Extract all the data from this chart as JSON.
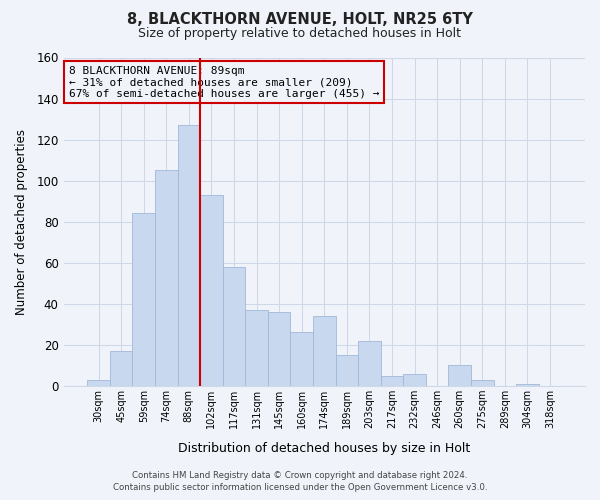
{
  "title": "8, BLACKTHORN AVENUE, HOLT, NR25 6TY",
  "subtitle": "Size of property relative to detached houses in Holt",
  "xlabel": "Distribution of detached houses by size in Holt",
  "ylabel": "Number of detached properties",
  "bar_labels": [
    "30sqm",
    "45sqm",
    "59sqm",
    "74sqm",
    "88sqm",
    "102sqm",
    "117sqm",
    "131sqm",
    "145sqm",
    "160sqm",
    "174sqm",
    "189sqm",
    "203sqm",
    "217sqm",
    "232sqm",
    "246sqm",
    "260sqm",
    "275sqm",
    "289sqm",
    "304sqm",
    "318sqm"
  ],
  "bar_values": [
    3,
    17,
    84,
    105,
    127,
    93,
    58,
    37,
    36,
    26,
    34,
    15,
    22,
    5,
    6,
    0,
    10,
    3,
    0,
    1,
    0
  ],
  "bar_color": "#c8d8ee",
  "bar_edge_color": "#a0b8d8",
  "vline_color": "#cc0000",
  "ylim": [
    0,
    160
  ],
  "yticks": [
    0,
    20,
    40,
    60,
    80,
    100,
    120,
    140,
    160
  ],
  "annotation_title": "8 BLACKTHORN AVENUE: 89sqm",
  "annotation_line1": "← 31% of detached houses are smaller (209)",
  "annotation_line2": "67% of semi-detached houses are larger (455) →",
  "footer1": "Contains HM Land Registry data © Crown copyright and database right 2024.",
  "footer2": "Contains public sector information licensed under the Open Government Licence v3.0.",
  "grid_color": "#d0d8e8",
  "bg_color": "#f0f4fa"
}
